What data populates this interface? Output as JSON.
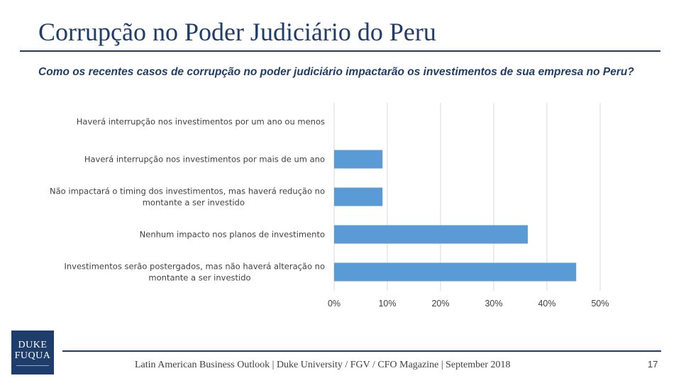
{
  "slide": {
    "title": "Corrupção no Poder Judiciário do Peru",
    "question": "Como os recentes casos de corrupção no poder judiciário impactarão os investimentos de sua empresa no Peru?",
    "footer": "Latin American Business Outlook | Duke University / FGV / CFO Magazine | September 2018",
    "page_number": "17",
    "logo": {
      "line1": "DUKE",
      "line2": "FUQUA"
    }
  },
  "colors": {
    "title": "#1f3d6b",
    "bar": "#5b9bd5",
    "grid": "#d9d9d9",
    "text": "#404040"
  },
  "chart_data": {
    "type": "bar",
    "orientation": "horizontal",
    "categories": [
      [
        "Haverá interrupção nos investimentos por um ano ou menos"
      ],
      [
        "Haverá interrupção nos investimentos por mais de um ano"
      ],
      [
        "Não impactará o timing dos investimentos, mas haverá redução no",
        "montante a ser investido"
      ],
      [
        "Nenhum impacto nos planos de investimento"
      ],
      [
        "Investimentos serão postergados, mas não haverá alteração no",
        "montante a ser investido"
      ]
    ],
    "values": [
      0,
      9.1,
      9.1,
      36.4,
      45.5
    ],
    "xlim": [
      0,
      50
    ],
    "xticks": [
      "0%",
      "10%",
      "20%",
      "30%",
      "40%",
      "50%"
    ],
    "grid": "vertical",
    "legend": "none",
    "title": "",
    "xlabel": "",
    "ylabel": ""
  }
}
